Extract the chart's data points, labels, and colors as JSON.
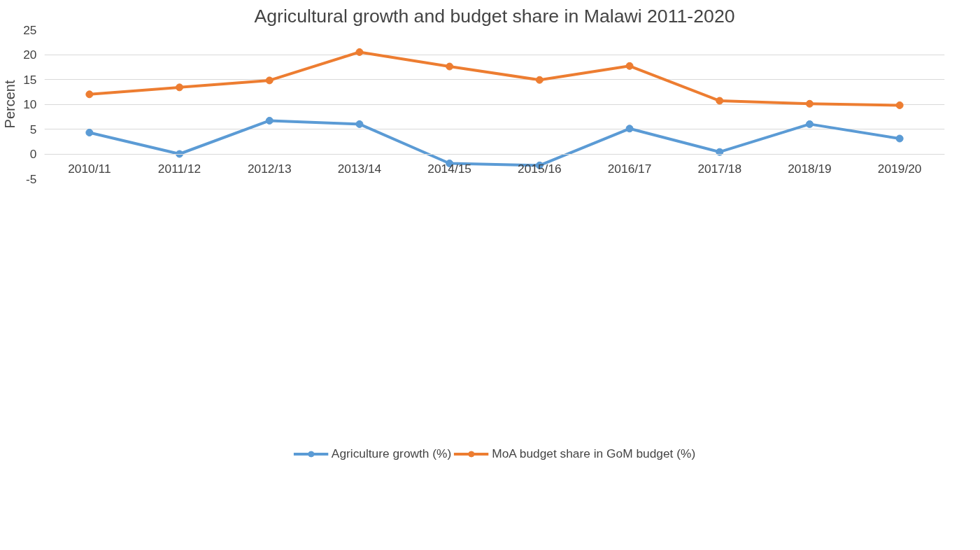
{
  "chart_data": {
    "type": "line",
    "title": "Agricultural growth and budget share in Malawi 2011-2020",
    "ylabel": "Percent",
    "categories": [
      "2010/11",
      "2011/12",
      "2012/13",
      "2013/14",
      "2014/15",
      "2015/16",
      "2016/17",
      "2017/18",
      "2018/19",
      "2019/20"
    ],
    "series": [
      {
        "name": "Agriculture growth (%)",
        "color": "#5b9bd5",
        "values": [
          4.3,
          0.0,
          6.7,
          6.0,
          -1.9,
          -2.3,
          5.1,
          0.4,
          6.0,
          3.1
        ]
      },
      {
        "name": "MoA budget share in GoM budget (%)",
        "color": "#ed7d31",
        "values": [
          12.0,
          13.4,
          14.8,
          20.5,
          17.6,
          14.9,
          17.7,
          10.7,
          10.1,
          9.8
        ]
      }
    ],
    "ylim": [
      -5,
      25
    ],
    "yticks": [
      -5,
      0,
      5,
      10,
      15,
      20,
      25
    ],
    "grid": "y",
    "legend": "bottom",
    "marker": "circle",
    "line_style": "solid"
  }
}
